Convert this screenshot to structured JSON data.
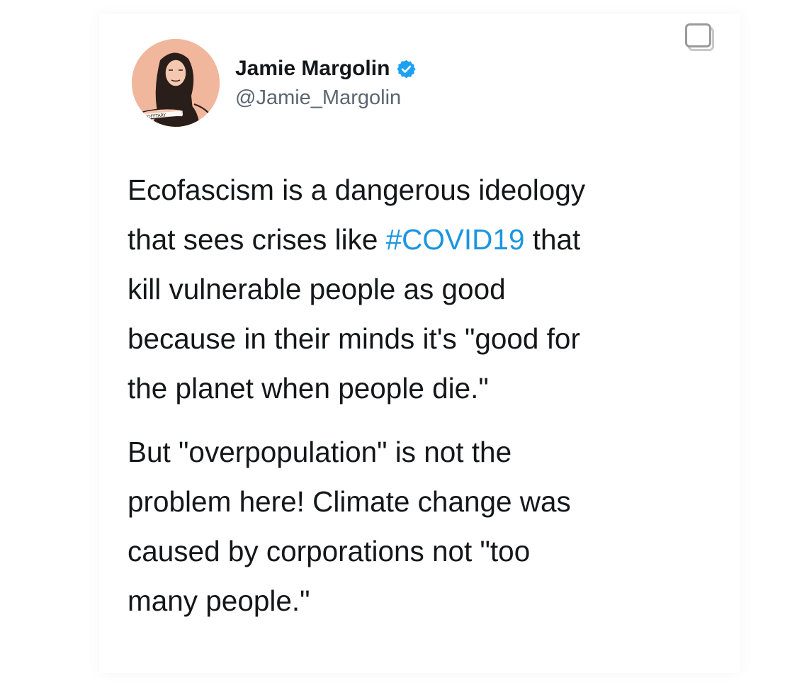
{
  "tweet": {
    "author": {
      "display_name": "Jamie Margolin",
      "handle": "@Jamie_Margolin",
      "verified_icon": "verified-badge-icon",
      "avatar_icon": "avatar-illustration",
      "avatar_sign_text": "SOFFTARY"
    },
    "body": {
      "paragraph_1": {
        "line_1": "Ecofascism is a dangerous ideology",
        "line_2_before": "that sees crises like ",
        "line_2_hashtag": "#COVID19",
        "line_2_after": " that",
        "line_3": "kill vulnerable people as good",
        "line_4": "because in their minds it's \"good for",
        "line_5": "the planet when people die.\""
      },
      "paragraph_2": {
        "line_1": "But \"overpopulation\" is not the",
        "line_2": "problem here! Climate change was",
        "line_3": "caused by corporations not \"too",
        "line_4": "many people.\""
      }
    }
  },
  "overlay": {
    "corner_icon": "square-select-icon"
  },
  "colors": {
    "text": "#14171a",
    "secondary_text": "#5b6670",
    "link": "#1b95e0",
    "verified": "#1da1f2",
    "avatar_bg": "#f1b79c"
  }
}
